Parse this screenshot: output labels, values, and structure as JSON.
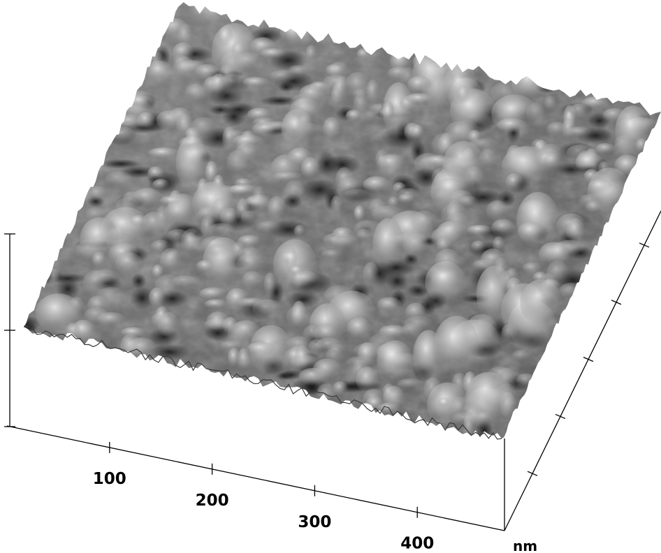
{
  "figure": {
    "kind": "afm-3d-surface-topography",
    "colormap": "grayscale",
    "background_color": "#ffffff"
  },
  "x_axis": {
    "tick_labels": [
      "100",
      "200",
      "300",
      "400"
    ],
    "unit": "nm"
  },
  "y_axis": {
    "tick_count": 5
  },
  "z_axis": {
    "tick_count": 3
  }
}
